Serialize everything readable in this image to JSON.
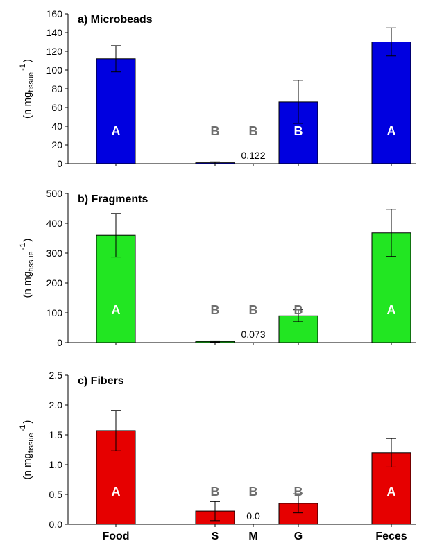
{
  "chart_data": [
    {
      "type": "bar",
      "title": "a) Microbeads",
      "ylabel_main": "(n mg",
      "ylabel_sub": "tissue",
      "ylabel_sup": "-1",
      "ylabel_close": ")",
      "categories": [
        "Food",
        "S",
        "M",
        "G",
        "Feces"
      ],
      "values": [
        112,
        1,
        0.122,
        66,
        130
      ],
      "errors": [
        14,
        1,
        0,
        23,
        15
      ],
      "letters": [
        "A",
        "B",
        "B",
        "B",
        "A"
      ],
      "value_labels": [
        "",
        "",
        "0.122",
        "",
        ""
      ],
      "ylim": [
        0,
        160
      ],
      "yticks": [
        "0",
        "20",
        "40",
        "60",
        "80",
        "100",
        "120",
        "140",
        "160"
      ],
      "color": "#0000e0",
      "show_xlabels": false
    },
    {
      "type": "bar",
      "title": "b) Fragments",
      "ylabel_main": "(n mg",
      "ylabel_sub": "tissue",
      "ylabel_sup": "-1",
      "ylabel_close": ")",
      "categories": [
        "Food",
        "S",
        "M",
        "G",
        "Feces"
      ],
      "values": [
        360,
        4,
        0.073,
        90,
        368
      ],
      "errors": [
        73,
        2,
        0,
        20,
        79
      ],
      "letters": [
        "A",
        "B",
        "B",
        "B",
        "A"
      ],
      "value_labels": [
        "",
        "",
        "0.073",
        "",
        ""
      ],
      "ylim": [
        0,
        500
      ],
      "yticks": [
        "0",
        "100",
        "200",
        "300",
        "400",
        "500"
      ],
      "color": "#22e622",
      "show_xlabels": false
    },
    {
      "type": "bar",
      "title": "c) Fibers",
      "ylabel_main": "(n mg",
      "ylabel_sub": "tissue",
      "ylabel_sup": "-1",
      "ylabel_close": ")",
      "categories": [
        "Food",
        "S",
        "M",
        "G",
        "Feces"
      ],
      "values": [
        1.57,
        0.22,
        0.0,
        0.35,
        1.2
      ],
      "errors": [
        0.34,
        0.16,
        0,
        0.16,
        0.24
      ],
      "letters": [
        "A",
        "B",
        "B",
        "B",
        "A"
      ],
      "value_labels": [
        "",
        "",
        "0.0",
        "",
        ""
      ],
      "ylim": [
        0,
        2.5
      ],
      "yticks": [
        "0.0",
        "0.5",
        "1.0",
        "1.5",
        "2.0",
        "2.5"
      ],
      "color": "#e60000",
      "show_xlabels": true
    }
  ]
}
